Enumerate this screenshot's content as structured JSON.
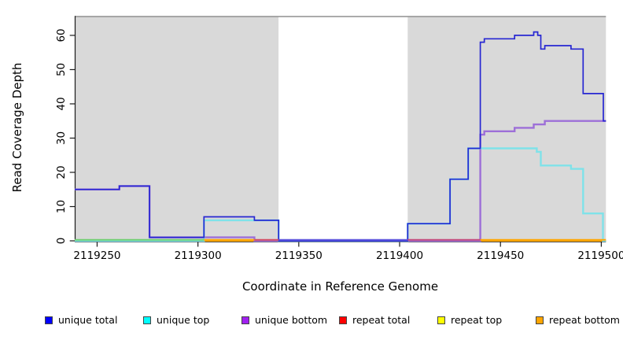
{
  "chart_data": {
    "type": "line",
    "subtype": "step-after",
    "title": "",
    "xlabel": "Coordinate in Reference Genome",
    "ylabel": "Read Coverage Depth",
    "x_ticks": [
      2119250,
      2119300,
      2119350,
      2119400,
      2119450,
      2119500
    ],
    "y_ticks": [
      0,
      10,
      20,
      30,
      40,
      50,
      60
    ],
    "xlim": [
      2119238.9,
      2119502.3
    ],
    "ylim": [
      0,
      65.5
    ],
    "grid": false,
    "panel_background": "#d9d9d9",
    "panel_top_border_color": "#8f8f8f",
    "axis_color": "#1a1a1a",
    "highlight_region": {
      "x0": 2119340,
      "x1": 2119404,
      "color": "#ffffff"
    },
    "series": [
      {
        "name": "repeat total",
        "color": "#ff0000",
        "width": 1.5,
        "points": [
          [
            2119238.9,
            0
          ]
        ]
      },
      {
        "name": "repeat top",
        "color": "#ffff00",
        "width": 1.5,
        "points": [
          [
            2119238.9,
            0
          ]
        ]
      },
      {
        "name": "repeat bottom",
        "color": "#ffa500",
        "width": 1.5,
        "points": [
          [
            2119238.9,
            0
          ]
        ]
      },
      {
        "name": "unique bottom",
        "color": "#9d6fd8",
        "width": 2.4,
        "points": [
          [
            2119238.9,
            15
          ],
          [
            2119261,
            16
          ],
          [
            2119276,
            1
          ],
          [
            2119328,
            0
          ],
          [
            2119440,
            31
          ],
          [
            2119442,
            32
          ],
          [
            2119457,
            33
          ],
          [
            2119466.5,
            34
          ],
          [
            2119472,
            35
          ]
        ]
      },
      {
        "name": "unique top",
        "color": "#7fe2e9",
        "width": 2.4,
        "points": [
          [
            2119238.9,
            0
          ],
          [
            2119303,
            6
          ],
          [
            2119340,
            0
          ],
          [
            2119404,
            5
          ],
          [
            2119425,
            18
          ],
          [
            2119434,
            27
          ],
          [
            2119468,
            26
          ],
          [
            2119470,
            22
          ],
          [
            2119485,
            21
          ],
          [
            2119491,
            8
          ],
          [
            2119500.8,
            0
          ]
        ]
      },
      {
        "name": "unique total",
        "color": "#2727d2",
        "width": 1.7,
        "points": [
          [
            2119238.9,
            15
          ],
          [
            2119261,
            16
          ],
          [
            2119276,
            1
          ],
          [
            2119303,
            7
          ],
          [
            2119328,
            6
          ],
          [
            2119340,
            0
          ],
          [
            2119404,
            5
          ],
          [
            2119425,
            18
          ],
          [
            2119434,
            27
          ],
          [
            2119440,
            58
          ],
          [
            2119442,
            59
          ],
          [
            2119457,
            60
          ],
          [
            2119466.5,
            61
          ],
          [
            2119468.5,
            60
          ],
          [
            2119470,
            56
          ],
          [
            2119472,
            57
          ],
          [
            2119485,
            56
          ],
          [
            2119491,
            43
          ],
          [
            2119501,
            35
          ]
        ]
      }
    ],
    "zero_line_segments": [
      {
        "x0": 2119238.9,
        "x1": 2119303,
        "color": "#6fcf6f"
      },
      {
        "x0": 2119303,
        "x1": 2119328,
        "color": "#ffa500"
      },
      {
        "x0": 2119328,
        "x1": 2119340,
        "color": "#d34a62"
      },
      {
        "x0": 2119340,
        "x1": 2119404,
        "color": "#5f55dd"
      },
      {
        "x0": 2119404,
        "x1": 2119440,
        "color": "#c4497c"
      },
      {
        "x0": 2119440,
        "x1": 2119502.3,
        "color": "#ffa500"
      }
    ],
    "legend": {
      "position": "bottom",
      "entries": [
        {
          "label": "unique total",
          "color": "#0000ff"
        },
        {
          "label": "unique top",
          "color": "#00ffff"
        },
        {
          "label": "unique bottom",
          "color": "#a020f0"
        },
        {
          "label": "repeat total",
          "color": "#ff0000"
        },
        {
          "label": "repeat top",
          "color": "#ffff00"
        },
        {
          "label": "repeat bottom",
          "color": "#ffa500"
        }
      ]
    }
  }
}
